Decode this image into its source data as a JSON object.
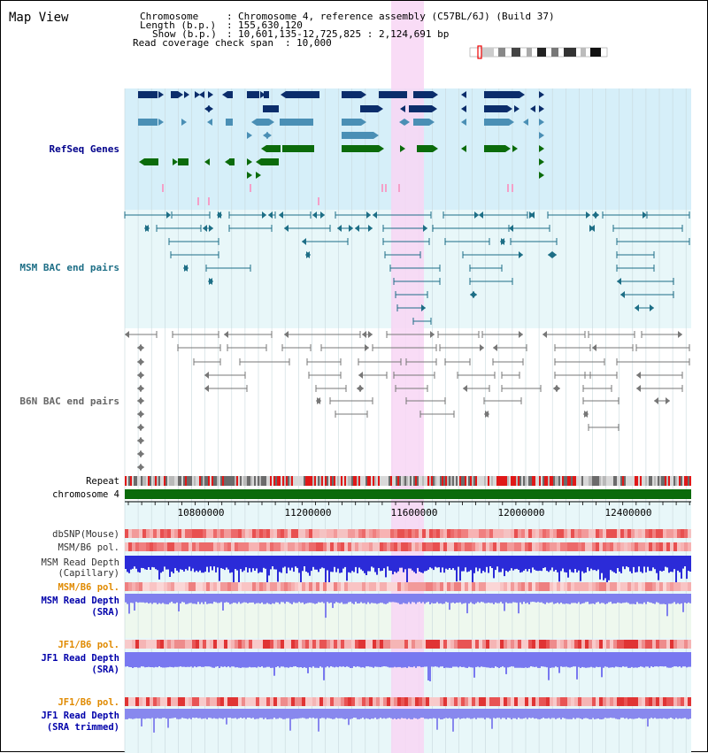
{
  "view_title": "Map View",
  "header": {
    "chromosome_label": "Chromosome",
    "chromosome_value": "Chromosome 4, reference assembly (C57BL/6J) (Build 37)",
    "length_label": "Length (b.p.)",
    "length_value": "155,630,120",
    "show_label": "Show (b.p.)",
    "show_value": "10,601,135-12,725,825 : 2,124,691 bp",
    "coverage_label": "Read coverage check span",
    "coverage_value": "10,000"
  },
  "tracks": {
    "refseq": "RefSeq Genes",
    "msm_bac": "MSM BAC end pairs",
    "b6n_bac": "B6N BAC end pairs",
    "repeat": "Repeat",
    "chromosome": "chromosome 4",
    "dbsnp": "dbSNP(Mouse)",
    "msm_b6_pol": "MSM/B6 pol.",
    "msm_read_depth_cap_1": "MSM Read Depth",
    "msm_read_depth_cap_2": "(Capillary)",
    "msm_b6_pol_2": "MSM/B6 pol.",
    "msm_read_depth_sra_1": "MSM Read Depth",
    "msm_read_depth_sra_2": "(SRA)",
    "jf1_b6_pol": "JF1/B6 pol.",
    "jf1_read_depth_1": "JF1 Read Depth",
    "jf1_read_depth_2": "(SRA)",
    "jf1_b6_pol_2": "JF1/B6 pol.",
    "jf1_trim_1": "JF1 Read Depth",
    "jf1_trim_2": "(SRA trimmed)"
  },
  "axis_ticks": [
    "10800000",
    "11200000",
    "11600000",
    "12000000",
    "12400000"
  ],
  "colors": {
    "refseq_bg": "#d6eff9",
    "bac_bg": "#e8f7f9",
    "highlight": "#f8d6f5",
    "navy": "#0b2d6b",
    "steel": "#4a8fb5",
    "green": "#0b6b0b",
    "teal": "#1d6e86",
    "gray": "#777777",
    "orange": "#e08a00",
    "darkblue": "#0000aa"
  }
}
